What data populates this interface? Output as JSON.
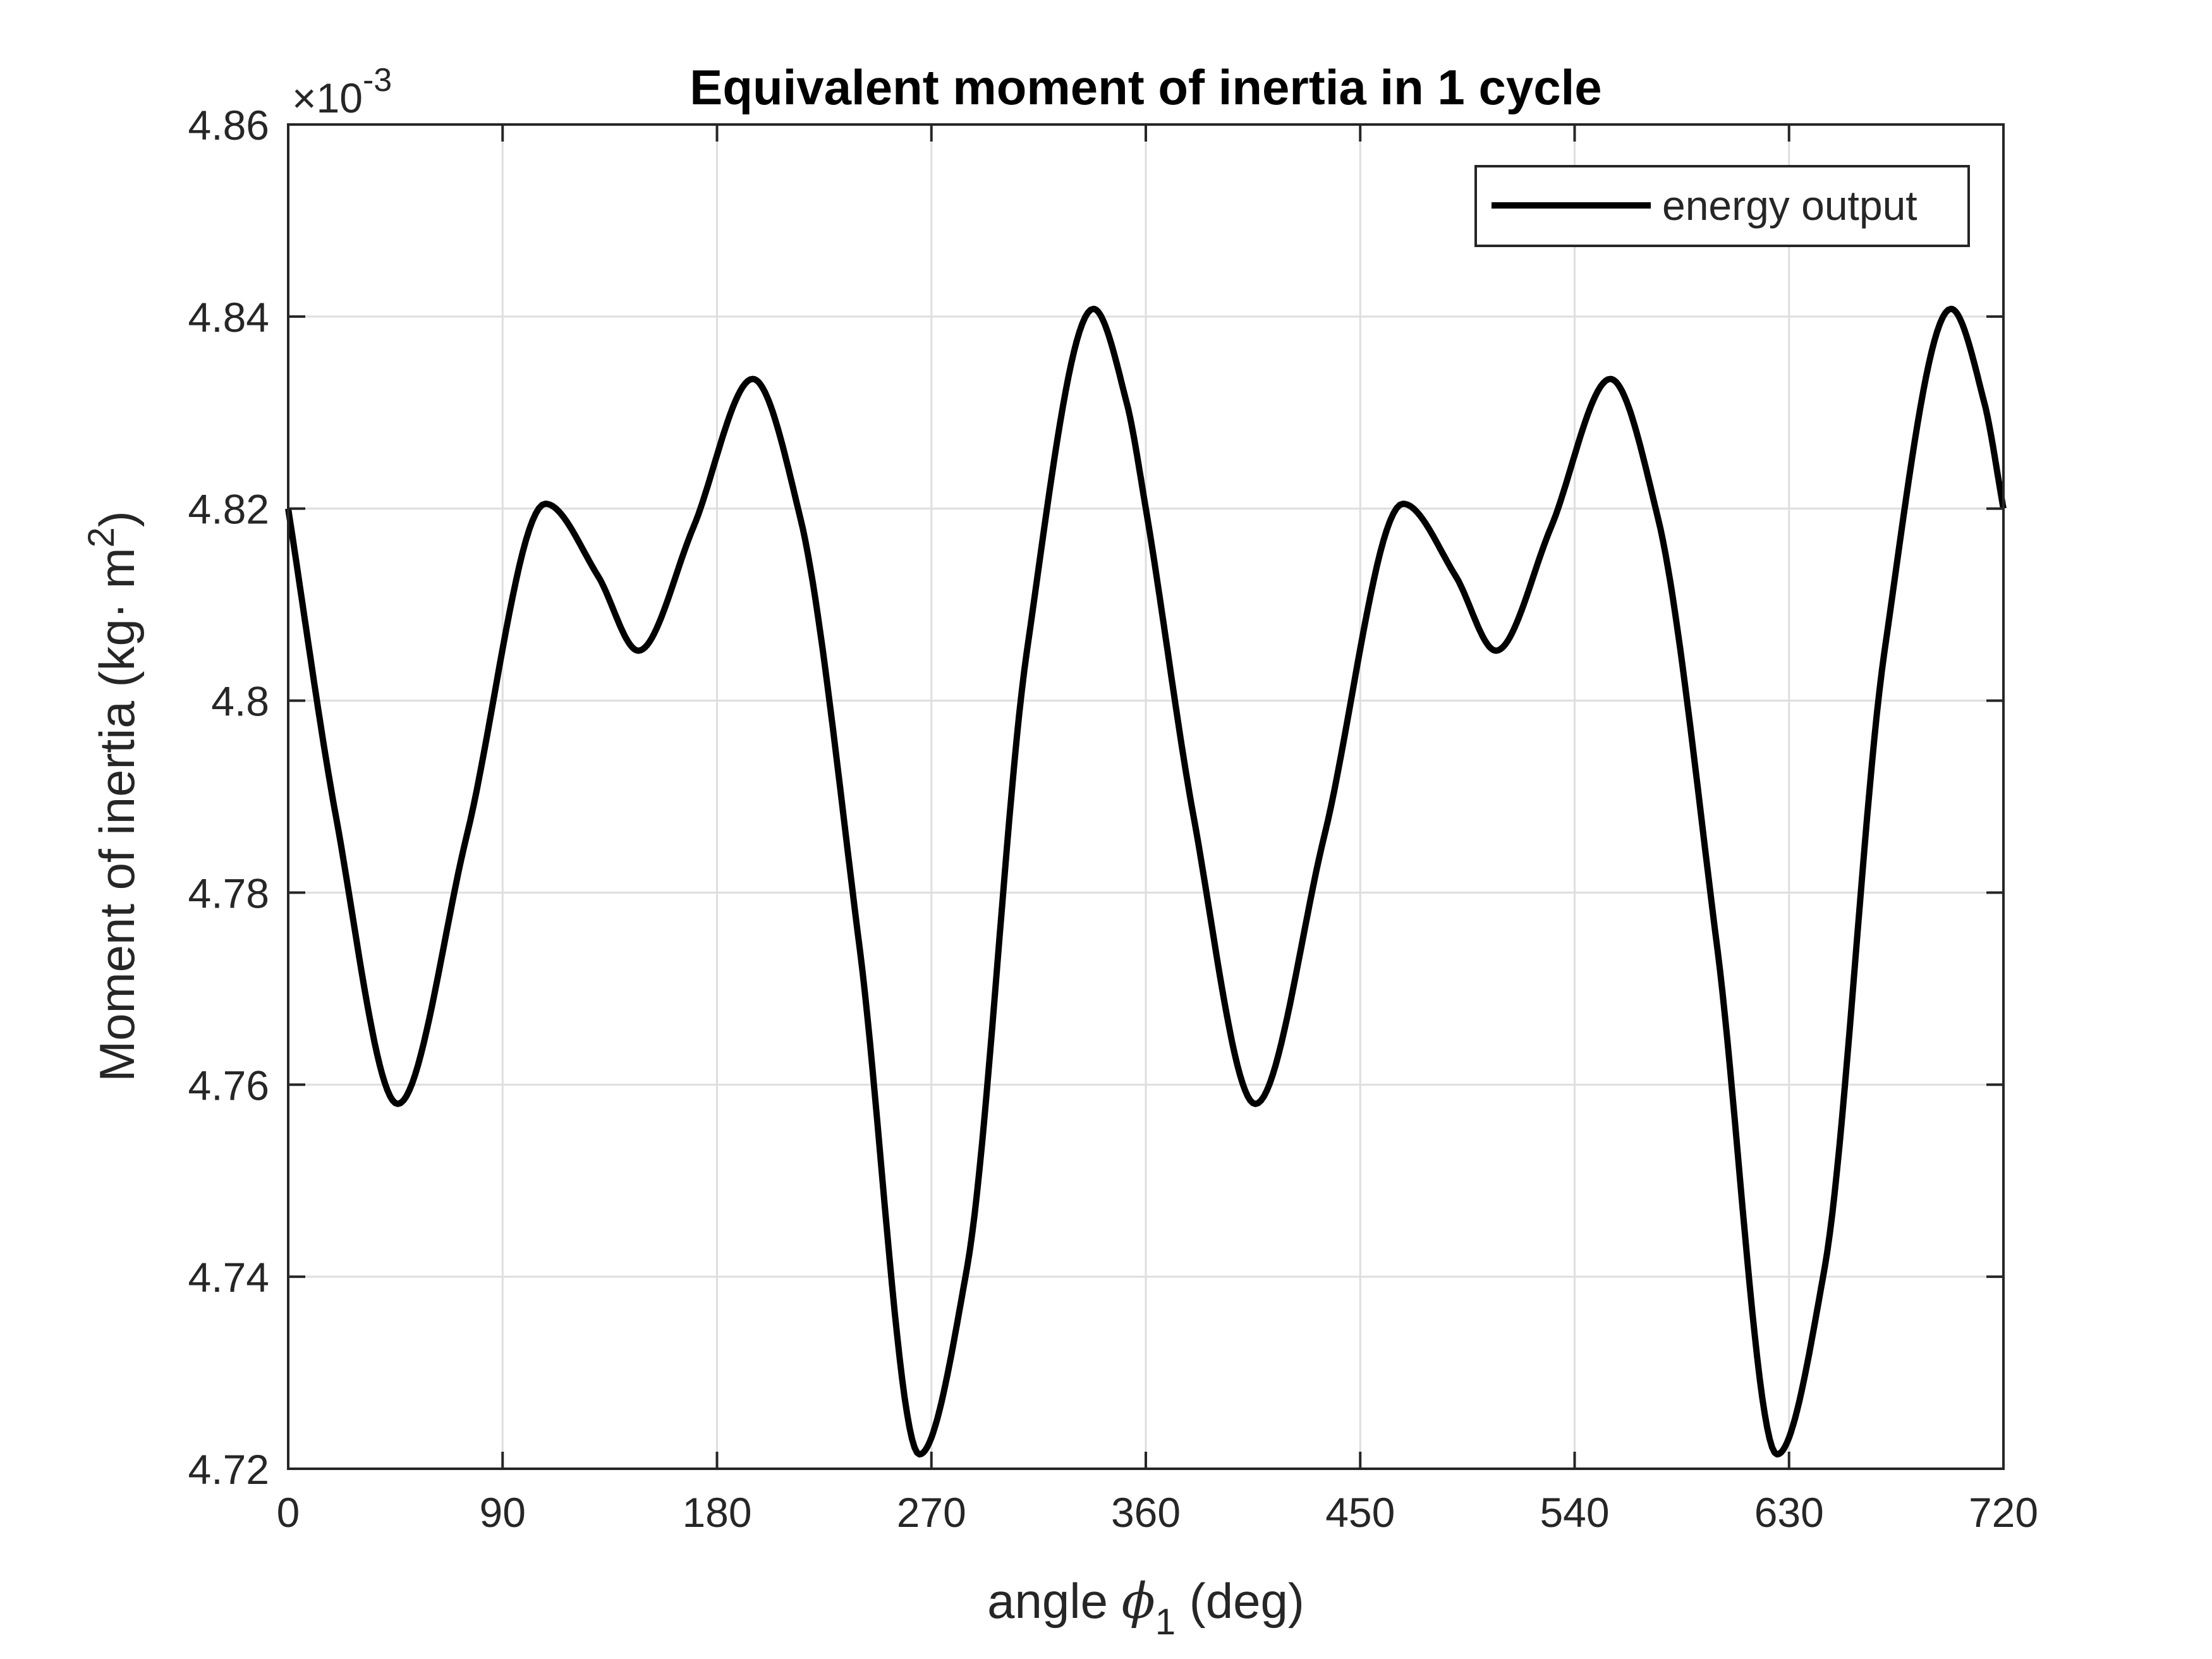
{
  "chart_data": {
    "type": "line",
    "title": "Equivalent moment of inertia in 1 cycle",
    "xlabel": {
      "main": "angle ",
      "symbol": "ϕ",
      "sub": "1",
      "tail": " (deg)"
    },
    "ylabel": {
      "main": "Moment of inertia (kg· m",
      "sup": "2",
      "tail": ")"
    },
    "exponent": {
      "times": "×",
      "base": "10",
      "power": "-3"
    },
    "xlim": [
      0,
      720
    ],
    "ylim": [
      4.72,
      4.86
    ],
    "scale_factor": 0.001,
    "xticks": [
      0,
      90,
      180,
      270,
      360,
      450,
      540,
      630,
      720
    ],
    "xtick_labels": [
      "0",
      "90",
      "180",
      "270",
      "360",
      "450",
      "540",
      "630",
      "720"
    ],
    "yticks": [
      4.72,
      4.74,
      4.76,
      4.78,
      4.8,
      4.82,
      4.84,
      4.86
    ],
    "ytick_labels": [
      "4.72",
      "4.74",
      "4.76",
      "4.78",
      "4.8",
      "4.82",
      "4.84",
      "4.86"
    ],
    "grid": true,
    "legend_position": "top-right",
    "series": [
      {
        "name": "energy output",
        "color": "#000000",
        "x": [
          0,
          20,
          46,
          75,
          108,
          130,
          147,
          170,
          195,
          215,
          240,
          265,
          285,
          310,
          338,
          352,
          360,
          380,
          406,
          435,
          468,
          490,
          507,
          530,
          555,
          575,
          600,
          625,
          645,
          670,
          698,
          712,
          720
        ],
        "y": [
          4.82,
          4.788,
          4.758,
          4.786,
          4.8205,
          4.813,
          4.8052,
          4.818,
          4.8335,
          4.819,
          4.774,
          4.7215,
          4.741,
          4.805,
          4.8408,
          4.831,
          4.82,
          4.788,
          4.758,
          4.786,
          4.8205,
          4.813,
          4.8052,
          4.818,
          4.8335,
          4.819,
          4.774,
          4.7215,
          4.741,
          4.805,
          4.8408,
          4.831,
          4.82
        ]
      }
    ]
  }
}
